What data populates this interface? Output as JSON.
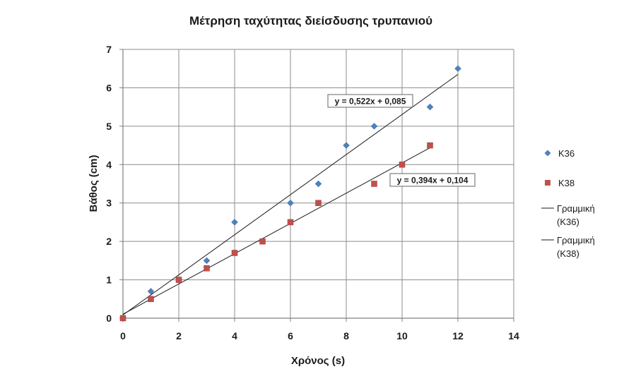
{
  "chart_data": {
    "type": "scatter",
    "title": "Μέτρηση ταχύτητας διείσδυσης τρυπανιού",
    "xlabel": "Χρόνος (s)",
    "ylabel": "Βάθος (cm)",
    "xlim": [
      0,
      14
    ],
    "ylim": [
      0,
      7
    ],
    "xticks": [
      0,
      2,
      4,
      6,
      8,
      10,
      12,
      14
    ],
    "yticks": [
      0,
      1,
      2,
      3,
      4,
      5,
      6,
      7
    ],
    "grid": true,
    "legend_position": "right",
    "series": [
      {
        "name": "K36",
        "marker": "diamond",
        "color": "#4f81bd",
        "x": [
          0,
          1,
          2,
          3,
          4,
          6,
          7,
          8,
          9,
          11,
          12
        ],
        "y": [
          0,
          0.7,
          1,
          1.5,
          2.5,
          3,
          3.5,
          4.5,
          5,
          5.5,
          6.5
        ]
      },
      {
        "name": "K38",
        "marker": "square",
        "color": "#c0504d",
        "x": [
          0,
          1,
          2,
          3,
          4,
          5,
          6,
          7,
          9,
          10,
          11
        ],
        "y": [
          0,
          0.5,
          1,
          1.3,
          1.7,
          2,
          2.5,
          3,
          3.5,
          4,
          4.5
        ]
      }
    ],
    "trendlines": [
      {
        "name": "Γραμμική (K36)",
        "slope": 0.522,
        "intercept": 0.085,
        "x_range": [
          0,
          12
        ],
        "equation": "y = 0,522x + 0,085",
        "color": "#1a1a1a"
      },
      {
        "name": "Γραμμική (K38)",
        "slope": 0.394,
        "intercept": 0.104,
        "x_range": [
          0,
          11
        ],
        "equation": "y = 0,394x + 0,104",
        "color": "#1a1a1a"
      }
    ],
    "legend": [
      {
        "label": "K36",
        "kind": "diamond",
        "color": "#4f81bd"
      },
      {
        "label": "K38",
        "kind": "square",
        "color": "#c0504d"
      },
      {
        "label": "Γραμμική (K36)",
        "kind": "line",
        "color": "#1a1a1a"
      },
      {
        "label": "Γραμμική (K38)",
        "kind": "line",
        "color": "#1a1a1a"
      }
    ]
  }
}
